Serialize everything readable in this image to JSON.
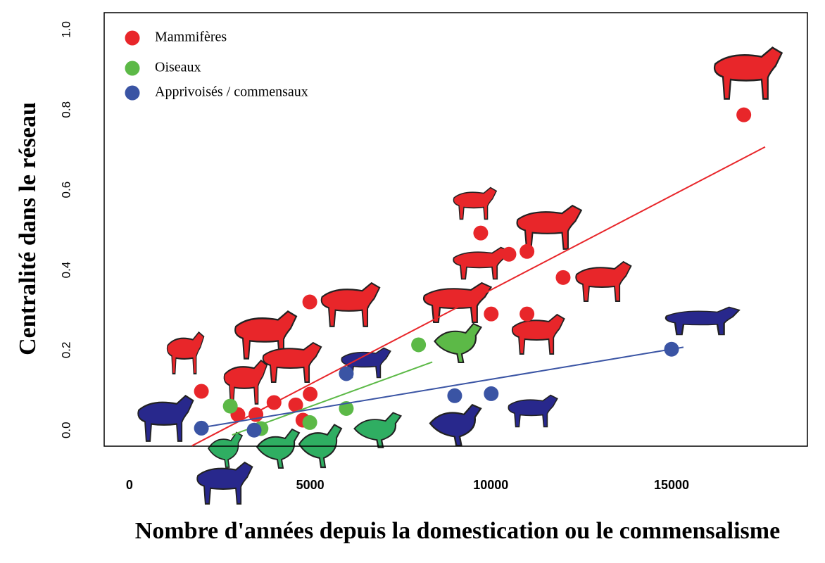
{
  "chart_data": {
    "type": "scatter",
    "xlabel": "Nombre d'années depuis la domestication ou le commensalisme",
    "ylabel": "Centralité dans le réseau",
    "xlim": [
      -700,
      18760
    ],
    "ylim": [
      -0.04,
      1.042
    ],
    "xticks": [
      0,
      5000,
      10000,
      15000
    ],
    "yticks": [
      {
        "value": 0,
        "label": "0.0"
      },
      {
        "value": 0.2,
        "label": "0.2"
      },
      {
        "value": 0.4,
        "label": "0.4"
      },
      {
        "value": 0.6,
        "label": "0.6"
      },
      {
        "value": 0.8,
        "label": "0.8"
      },
      {
        "value": 1.0,
        "label": "1.0"
      }
    ],
    "legend": "top-left",
    "series": [
      {
        "name": "Mammifères",
        "color": "#e8262a",
        "x": [
          17000,
          9720,
          10500,
          11000,
          12000,
          10010,
          11000,
          4990,
          1990,
          3000,
          3500,
          4000,
          4600,
          5000,
          4800
        ],
        "values": [
          0.787,
          0.492,
          0.439,
          0.446,
          0.381,
          0.29,
          0.29,
          0.32,
          0.097,
          0.039,
          0.039,
          0.069,
          0.063,
          0.09,
          0.025
        ],
        "fit": {
          "x": [
            1730,
            17590
          ],
          "values": [
            -0.039,
            0.707
          ]
        }
      },
      {
        "name": "Oiseaux",
        "color": "#5cb947",
        "x": [
          8000,
          2790,
          3640,
          4990,
          6000
        ],
        "values": [
          0.213,
          0.06,
          0.004,
          0.019,
          0.054
        ],
        "fit": {
          "x": [
            2840,
            8380
          ],
          "values": [
            -0.012,
            0.17
          ]
        }
      },
      {
        "name": "Apprivoisés / commensaux",
        "color": "#3a54a4",
        "x": [
          15000,
          10010,
          9000,
          6000,
          1990,
          3450
        ],
        "values": [
          0.202,
          0.091,
          0.086,
          0.141,
          0.005,
          0
        ],
        "fit": {
          "x": [
            2030,
            15330
          ],
          "values": [
            0.007,
            0.207
          ]
        }
      }
    ]
  }
}
